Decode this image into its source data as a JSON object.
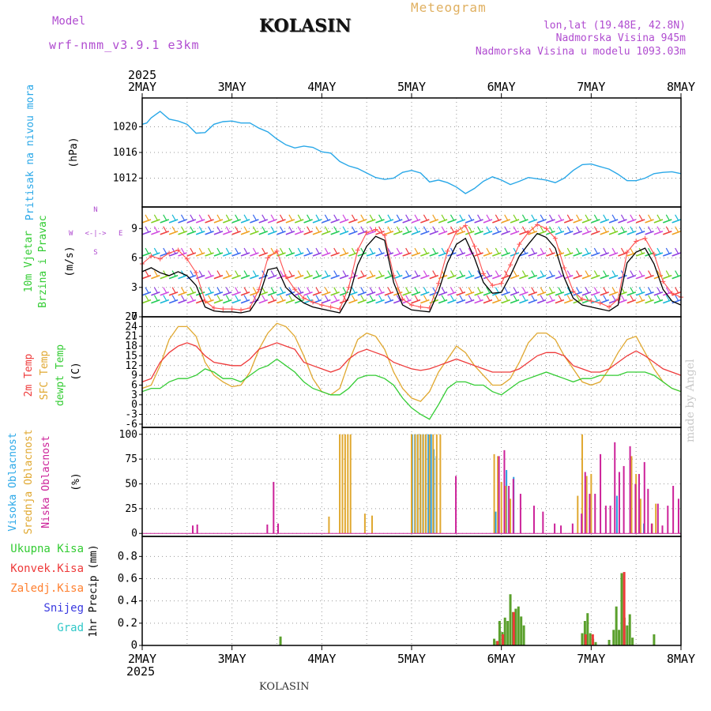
{
  "header": {
    "model_label": "Model",
    "model_name": "wrf-nmm_v3.9.1  e3km",
    "station": "KOLASIN",
    "meteogram_label": "Meteogram",
    "lonlat": "lon,lat (19.48E, 42.8N)",
    "altitude": "Nadmorska Visina 945m",
    "model_altitude": "Nadmorska Visina u modelu 1093.03m",
    "footer_station": "KOLASIN",
    "watermark": "made by Angel"
  },
  "chart_data": [
    {
      "type": "line",
      "title": "Pritisak na nivou mora",
      "ylabel": "(hPa)",
      "ylim": [
        1007.5,
        1024.5
      ],
      "yticks": [
        1012,
        1016,
        1020
      ],
      "ytick_labels": [
        "1012",
        "1016",
        "1020"
      ],
      "x_days": [
        2.0,
        2.05,
        2.1,
        2.15,
        2.2,
        2.3,
        2.4,
        2.5,
        2.6,
        2.7,
        2.8,
        2.9,
        3.0,
        3.1,
        3.2,
        3.3,
        3.4,
        3.5,
        3.6,
        3.7,
        3.8,
        3.9,
        4.0,
        4.1,
        4.2,
        4.3,
        4.4,
        4.5,
        4.6,
        4.7,
        4.8,
        4.9,
        5.0,
        5.1,
        5.2,
        5.3,
        5.4,
        5.5,
        5.6,
        5.7,
        5.8,
        5.9,
        6.0,
        6.1,
        6.2,
        6.3,
        6.4,
        6.5,
        6.6,
        6.7,
        6.8,
        6.9,
        7.0,
        7.1,
        7.2,
        7.3,
        7.4,
        7.5,
        7.6,
        7.7,
        7.8,
        7.9,
        8.0
      ],
      "series": [
        {
          "name": "MSLP",
          "color": "#2aa8e8",
          "values": [
            1020.4,
            1020.6,
            1021.4,
            1021.9,
            1022.4,
            1021.2,
            1020.9,
            1020.4,
            1019.0,
            1019.1,
            1020.4,
            1020.8,
            1020.9,
            1020.6,
            1020.6,
            1019.8,
            1019.2,
            1018.1,
            1017.2,
            1016.7,
            1017.0,
            1016.8,
            1016.1,
            1015.9,
            1014.6,
            1013.9,
            1013.5,
            1012.8,
            1012.1,
            1011.8,
            1012.0,
            1012.9,
            1013.2,
            1012.8,
            1011.4,
            1011.7,
            1011.3,
            1010.6,
            1009.6,
            1010.4,
            1011.5,
            1012.2,
            1011.7,
            1011.0,
            1011.5,
            1012.1,
            1011.9,
            1011.7,
            1011.3,
            1012.0,
            1013.2,
            1014.1,
            1014.2,
            1013.8,
            1013.4,
            1012.6,
            1011.6,
            1011.6,
            1012.0,
            1012.7,
            1012.9,
            1013.0,
            1012.7
          ]
        }
      ]
    },
    {
      "type": "line",
      "title": "10m Vjetar Brzina i Pravac",
      "ylabel": "(m/s)",
      "compass": {
        "n": "N",
        "w": "W",
        "e": "E",
        "s": "S",
        "axis": "<-|->"
      },
      "ylim": [
        0,
        11.2
      ],
      "yticks": [
        0,
        3,
        6,
        9
      ],
      "ytick_labels": [
        "0",
        "3",
        "6",
        "9"
      ],
      "barb_rows": [
        1.4,
        2.2,
        3.9,
        6.2,
        8.4,
        9.6
      ],
      "x_days": [
        2.0,
        2.1,
        2.2,
        2.3,
        2.4,
        2.5,
        2.6,
        2.7,
        2.8,
        2.9,
        3.0,
        3.1,
        3.2,
        3.3,
        3.4,
        3.5,
        3.6,
        3.7,
        3.8,
        3.9,
        4.0,
        4.1,
        4.2,
        4.3,
        4.4,
        4.5,
        4.6,
        4.7,
        4.8,
        4.9,
        5.0,
        5.1,
        5.2,
        5.3,
        5.4,
        5.5,
        5.6,
        5.7,
        5.8,
        5.9,
        6.0,
        6.1,
        6.2,
        6.3,
        6.4,
        6.5,
        6.6,
        6.7,
        6.8,
        6.9,
        7.0,
        7.1,
        7.2,
        7.3,
        7.4,
        7.5,
        7.6,
        7.7,
        7.8,
        7.9,
        8.0
      ],
      "series": [
        {
          "name": "Brzina",
          "color": "#000000",
          "values": [
            4.6,
            5.0,
            4.5,
            4.2,
            4.6,
            4.2,
            3.2,
            1.0,
            0.6,
            0.5,
            0.5,
            0.4,
            0.6,
            2.0,
            4.8,
            5.0,
            3.0,
            2.1,
            1.4,
            1.0,
            0.8,
            0.6,
            0.4,
            2.0,
            5.3,
            7.2,
            8.2,
            7.8,
            3.5,
            1.2,
            0.7,
            0.6,
            0.5,
            2.6,
            5.5,
            7.4,
            8.0,
            6.0,
            3.5,
            2.4,
            2.5,
            4.2,
            6.2,
            7.4,
            8.5,
            8.1,
            7.0,
            4.0,
            1.9,
            1.2,
            1.0,
            0.8,
            0.6,
            1.2,
            5.5,
            6.6,
            7.0,
            5.4,
            2.8,
            1.6,
            1.2
          ]
        },
        {
          "name": "Udari",
          "color": "#ff5050",
          "values": [
            5.4,
            6.2,
            5.9,
            6.5,
            6.8,
            5.9,
            4.5,
            1.6,
            0.9,
            0.8,
            0.8,
            0.7,
            0.9,
            2.8,
            6.0,
            6.7,
            4.1,
            2.8,
            1.9,
            1.5,
            1.2,
            1.0,
            0.8,
            3.0,
            6.8,
            8.6,
            8.9,
            8.3,
            4.2,
            1.8,
            1.2,
            1.0,
            0.9,
            3.4,
            6.7,
            8.7,
            9.3,
            7.2,
            4.4,
            3.2,
            3.4,
            5.3,
            7.4,
            8.6,
            9.4,
            9.0,
            8.0,
            5.0,
            2.6,
            1.8,
            1.6,
            1.4,
            1.0,
            1.8,
            6.6,
            7.7,
            8.0,
            6.4,
            3.6,
            2.4,
            2.0
          ]
        }
      ]
    },
    {
      "type": "line",
      "title": "2m Temp / SFC Temp / dewpt Temp",
      "ylabel": "(C)",
      "ylim": [
        -7,
        27
      ],
      "yticks": [
        -6,
        -3,
        0,
        3,
        6,
        9,
        12,
        15,
        18,
        21,
        24,
        27
      ],
      "ytick_labels": [
        "-6",
        "-3",
        "0",
        "3",
        "6",
        "9",
        "12",
        "15",
        "18",
        "21",
        "24",
        "27"
      ],
      "x_days": [
        2.0,
        2.1,
        2.2,
        2.3,
        2.4,
        2.5,
        2.6,
        2.7,
        2.8,
        2.9,
        3.0,
        3.1,
        3.2,
        3.3,
        3.4,
        3.5,
        3.6,
        3.7,
        3.8,
        3.9,
        4.0,
        4.1,
        4.2,
        4.3,
        4.4,
        4.5,
        4.6,
        4.7,
        4.8,
        4.9,
        5.0,
        5.1,
        5.2,
        5.3,
        5.4,
        5.5,
        5.6,
        5.7,
        5.8,
        5.9,
        6.0,
        6.1,
        6.2,
        6.3,
        6.4,
        6.5,
        6.6,
        6.7,
        6.8,
        6.9,
        7.0,
        7.1,
        7.2,
        7.3,
        7.4,
        7.5,
        7.6,
        7.7,
        7.8,
        7.9,
        8.0
      ],
      "series": [
        {
          "name": "2m Temp",
          "color": "#ee3a3a",
          "values": [
            7,
            8,
            13,
            16,
            18,
            19,
            18,
            15,
            13,
            12.5,
            12,
            12,
            14,
            17,
            18,
            19,
            18,
            17,
            13,
            12,
            11,
            10,
            11,
            14,
            16,
            17,
            16,
            15,
            13,
            12,
            11,
            10.5,
            11,
            12,
            13,
            14,
            13,
            12,
            11,
            10,
            10,
            10,
            11,
            13,
            15,
            16,
            16,
            15,
            12,
            11,
            10,
            10,
            11,
            13,
            15,
            16.5,
            15,
            13,
            11,
            10,
            9
          ]
        },
        {
          "name": "SFC Temp",
          "color": "#e0a830",
          "values": [
            5,
            6,
            12,
            20,
            24,
            24,
            21,
            13,
            9,
            7,
            5.5,
            6,
            10,
            17,
            22,
            25,
            24,
            21,
            15,
            8,
            4,
            3,
            5,
            13,
            20,
            22,
            21,
            17,
            10,
            5,
            2,
            1,
            4,
            10,
            14,
            18,
            16,
            12,
            9,
            6,
            6,
            8,
            13,
            19,
            22,
            22,
            20,
            15,
            11,
            7,
            6,
            7,
            11,
            16,
            20,
            21,
            16,
            11,
            7,
            5,
            4
          ]
        },
        {
          "name": "dewpt Temp",
          "color": "#33cc33",
          "values": [
            4,
            5,
            5,
            7,
            8,
            8,
            9,
            11,
            10,
            8,
            8,
            7,
            9,
            11,
            12,
            14,
            12,
            10,
            7,
            5,
            4,
            3,
            3,
            5,
            8,
            9,
            9,
            8,
            6,
            2,
            -1,
            -3,
            -4.5,
            0,
            5,
            7,
            7,
            6,
            6,
            4,
            3,
            5,
            7,
            8,
            9,
            10,
            9,
            8,
            7,
            8,
            8,
            9,
            9,
            9,
            10,
            10,
            10,
            9,
            7,
            5,
            4
          ]
        }
      ]
    },
    {
      "type": "bar",
      "title": "Visoka / Srednja / Niska Oblacnost",
      "ylabel": "(%)",
      "ylim": [
        -3,
        107
      ],
      "yticks": [
        0,
        25,
        50,
        75,
        100
      ],
      "ytick_labels": [
        "0",
        "25",
        "50",
        "75",
        "100"
      ],
      "series": [
        {
          "name": "Visoka Oblacnost",
          "color": "#2a9ee0",
          "x": [
            5.02,
            5.05,
            5.08,
            5.11,
            5.14,
            5.17,
            5.2,
            5.23,
            5.26,
            5.29,
            5.95,
            5.98,
            6.07,
            6.15,
            7.3,
            7.6
          ],
          "values": [
            100,
            100,
            100,
            100,
            100,
            100,
            100,
            100,
            85,
            78,
            22,
            22,
            64,
            57,
            38,
            10
          ]
        },
        {
          "name": "Srednja Oblacnost",
          "color": "#e0a830",
          "x": [
            4.08,
            4.2,
            4.23,
            4.26,
            4.29,
            4.32,
            4.48,
            4.56,
            5.0,
            5.04,
            5.07,
            5.1,
            5.13,
            5.16,
            5.2,
            5.24,
            5.28,
            5.32,
            5.92,
            5.96,
            6.0,
            6.05,
            6.1,
            6.85,
            6.9,
            6.95,
            7.0,
            7.45,
            7.5,
            7.55,
            7.68,
            7.72
          ],
          "values": [
            17,
            100,
            100,
            100,
            100,
            100,
            20,
            18,
            100,
            100,
            100,
            100,
            100,
            100,
            100,
            100,
            100,
            100,
            80,
            78,
            52,
            48,
            35,
            38,
            100,
            58,
            60,
            78,
            60,
            35,
            10,
            30
          ]
        },
        {
          "name": "Niska Oblacnost",
          "color": "#cc2299",
          "x": [
            2.55,
            2.6,
            3.38,
            3.45,
            3.5,
            5.48,
            5.96,
            6.02,
            6.07,
            6.12,
            6.2,
            6.35,
            6.45,
            6.58,
            6.65,
            6.78,
            6.88,
            6.92,
            6.97,
            7.03,
            7.09,
            7.15,
            7.2,
            7.25,
            7.3,
            7.35,
            7.42,
            7.48,
            7.52,
            7.58,
            7.62,
            7.66,
            7.73,
            7.78,
            7.84,
            7.9,
            7.96
          ],
          "values": [
            8,
            9,
            9,
            52,
            10,
            58,
            78,
            84,
            48,
            55,
            40,
            28,
            22,
            10,
            8,
            10,
            20,
            62,
            40,
            40,
            80,
            28,
            28,
            92,
            62,
            68,
            88,
            50,
            60,
            72,
            45,
            10,
            30,
            8,
            28,
            48,
            35
          ]
        }
      ]
    },
    {
      "type": "bar",
      "title": "1hr Precip",
      "ylabel": "1hr Precip (mm)",
      "ylim": [
        0,
        0.98
      ],
      "yticks": [
        0,
        0.2,
        0.4,
        0.6,
        0.8
      ],
      "ytick_labels": [
        "0",
        "0.2",
        "0.4",
        "0.6",
        "0.8"
      ],
      "legend": [
        "Ukupna Kisa",
        "Konvek.Kisa",
        "Zaledj.Kisa",
        "Snijeg",
        "Grad"
      ],
      "legend_colors": [
        "#33cc33",
        "#ee3a3a",
        "#ff8030",
        "#3a3ae0",
        "#30c8c8"
      ],
      "series": [
        {
          "name": "Ukupna Kisa",
          "color": "#5aa02c",
          "x": [
            3.54,
            5.92,
            5.95,
            5.98,
            6.01,
            6.04,
            6.07,
            6.1,
            6.13,
            6.16,
            6.19,
            6.22,
            6.25,
            6.9,
            6.93,
            6.96,
            6.99,
            7.02,
            7.05,
            7.2,
            7.25,
            7.28,
            7.31,
            7.34,
            7.37,
            7.4,
            7.43,
            7.46,
            7.7
          ],
          "values": [
            0.08,
            0.06,
            0.04,
            0.22,
            0.12,
            0.25,
            0.22,
            0.46,
            0.3,
            0.33,
            0.35,
            0.26,
            0.18,
            0.11,
            0.22,
            0.29,
            0.11,
            0.06,
            0.03,
            0.05,
            0.14,
            0.35,
            0.14,
            0.65,
            0.25,
            0.18,
            0.28,
            0.07,
            0.1
          ]
        },
        {
          "name": "Konvek.Kisa",
          "color": "#ee3a3a",
          "x": [
            5.94,
            6.0,
            6.12,
            6.92,
            7.0,
            7.35
          ],
          "values": [
            0.04,
            0.1,
            0.3,
            0.1,
            0.1,
            0.66
          ]
        }
      ]
    }
  ],
  "xaxis": {
    "year": "2025",
    "tick_labels": [
      "2MAY",
      "3MAY",
      "4MAY",
      "5MAY",
      "6MAY",
      "7MAY",
      "8MAY"
    ],
    "bottom_year": "2025"
  },
  "panel_labels": {
    "p1": [
      "Pritisak na nivou mora"
    ],
    "p2": [
      "10m Vjetar",
      "Brzina i Pravac"
    ],
    "p3": [
      "2m Temp",
      "SFC Temp",
      "dewpt Temp"
    ],
    "p4": [
      "Visoka Oblacnost",
      "Srednja Oblacnost",
      "Niska Oblacnost"
    ]
  },
  "colors": {
    "pressure_title": "#2aa8e8",
    "wind_title": "#33cc33",
    "compass": "#b04cd0",
    "temp_title_1": "#ee3a3a",
    "temp_title_2": "#e0a830",
    "temp_title_3": "#33cc33",
    "cloud_title_1": "#2aa8e8",
    "cloud_title_2": "#e0a830",
    "cloud_title_3": "#cc2299"
  }
}
